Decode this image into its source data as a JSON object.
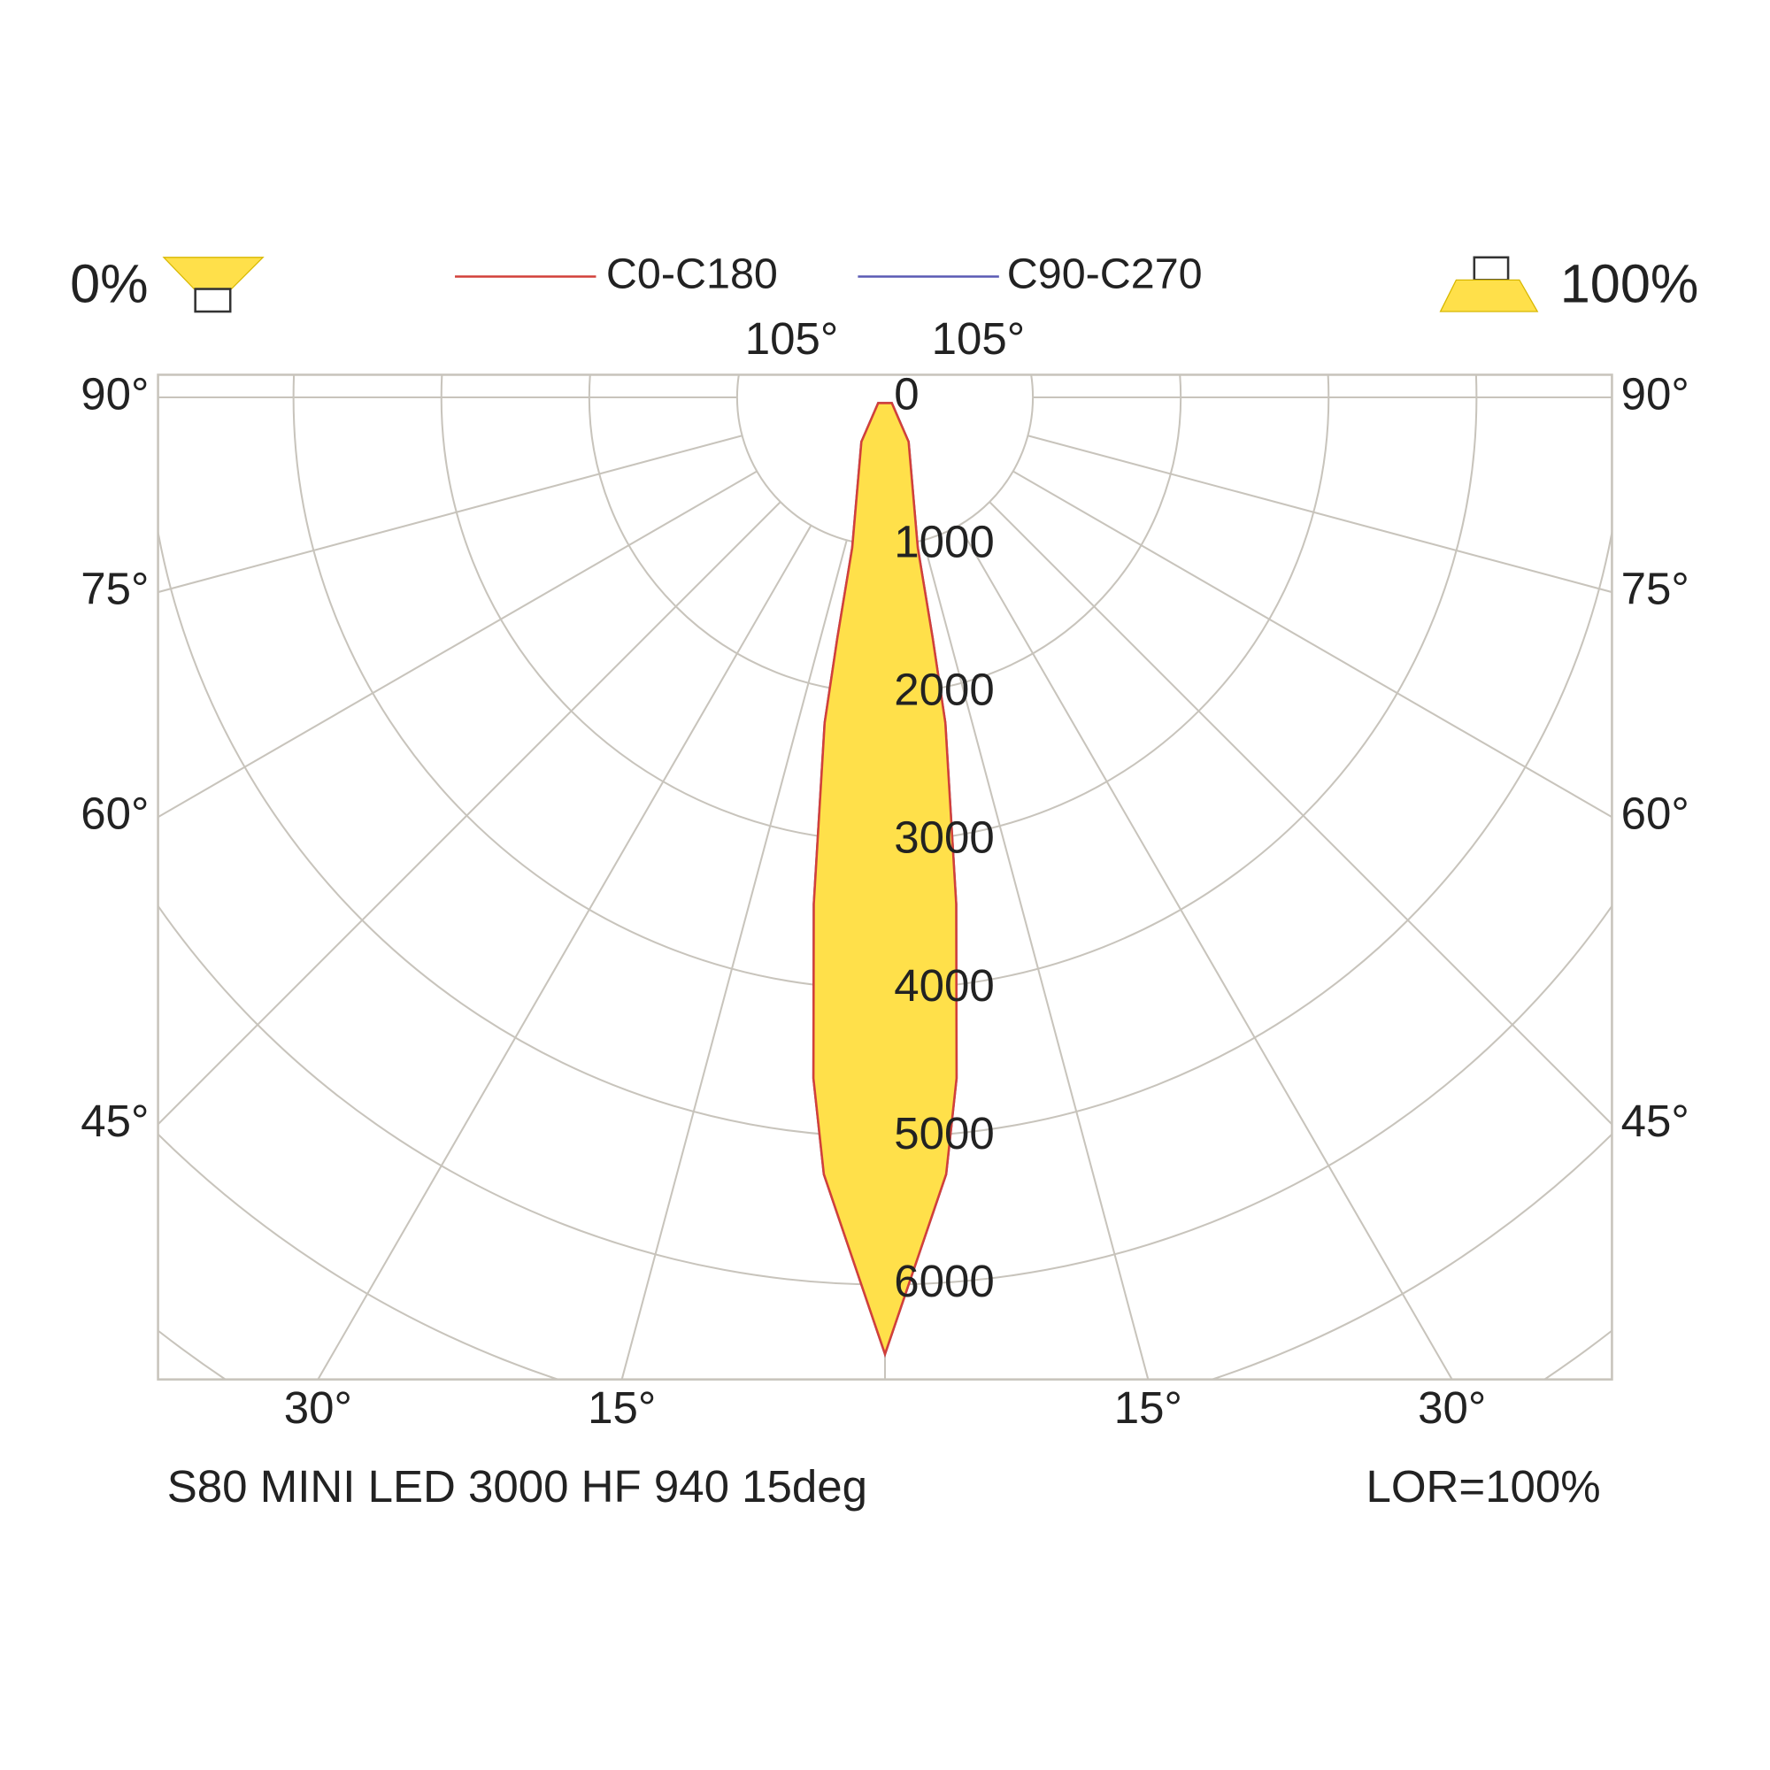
{
  "chart_data": {
    "type": "polar",
    "title": "S80 MINI LED 3000 HF 940 15deg",
    "annotation": "LOR=100%",
    "downward_label": "0%",
    "upward_label": "100%",
    "angles": [
      -50,
      -28,
      -12.3,
      -11.2,
      -10.5,
      -8,
      -6,
      -4.5,
      0,
      4.5,
      6,
      8,
      10.5,
      11.2,
      12.3,
      28,
      50
    ],
    "series": [
      {
        "name": "C90-C270",
        "color": "#5a5ab4",
        "values": [
          60,
          340,
          1040,
          1660,
          2240,
          3460,
          4630,
          5270,
          6470,
          5270,
          4630,
          3460,
          2240,
          1660,
          1040,
          340,
          60
        ]
      },
      {
        "name": "C0-C180",
        "color": "#d2403a",
        "values": [
          60,
          340,
          1040,
          1660,
          2240,
          3460,
          4630,
          5270,
          6470,
          5270,
          4630,
          3460,
          2240,
          1660,
          1040,
          340,
          60
        ]
      }
    ],
    "fill": "#ffe04a",
    "rticks": [
      0,
      1000,
      2000,
      3000,
      4000,
      5000,
      6000
    ],
    "minor_rings": [
      7000,
      8000,
      9000
    ],
    "angle_ticks": [
      {
        "value": 15,
        "label": "15°"
      },
      {
        "value": 30,
        "label": "30°"
      },
      {
        "value": 45,
        "label": "45°"
      },
      {
        "value": 60,
        "label": "60°"
      },
      {
        "value": 75,
        "label": "75°"
      },
      {
        "value": 90,
        "label": "90°"
      },
      {
        "value": 105,
        "label": "105°"
      }
    ],
    "grid": true
  }
}
